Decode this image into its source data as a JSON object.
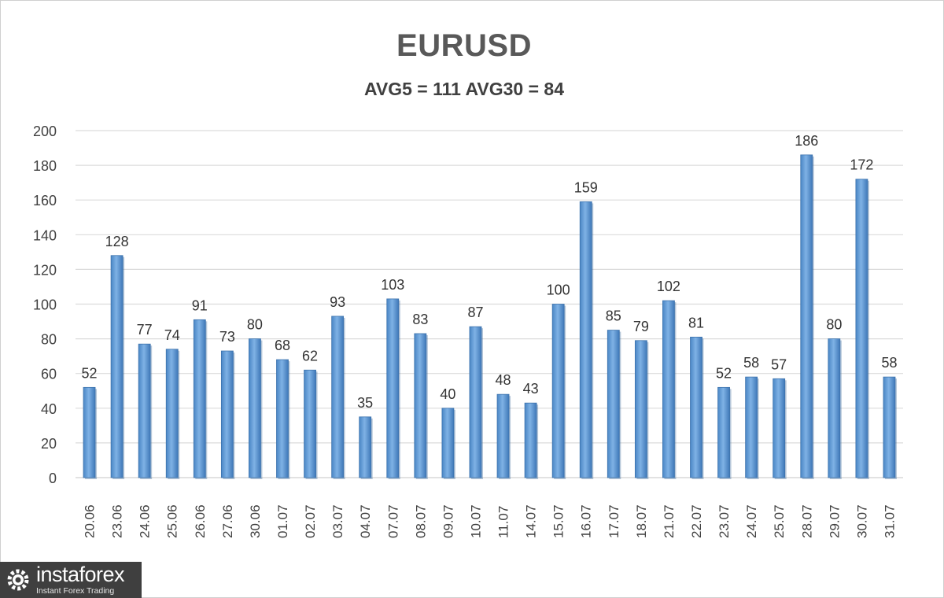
{
  "chart_data": {
    "type": "bar",
    "title": "EURUSD",
    "subtitle": "AVG5 = 111 AVG30 = 84",
    "categories": [
      "20.06",
      "23.06",
      "24.06",
      "25.06",
      "26.06",
      "27.06",
      "30.06",
      "01.07",
      "02.07",
      "03.07",
      "04.07",
      "07.07",
      "08.07",
      "09.07",
      "10.07",
      "11.07",
      "14.07",
      "15.07",
      "16.07",
      "17.07",
      "18.07",
      "21.07",
      "22.07",
      "23.07",
      "24.07",
      "25.07",
      "28.07",
      "29.07",
      "30.07",
      "31.07"
    ],
    "values": [
      52,
      128,
      77,
      74,
      91,
      73,
      80,
      68,
      62,
      93,
      35,
      103,
      83,
      40,
      87,
      48,
      43,
      100,
      159,
      85,
      79,
      102,
      81,
      52,
      58,
      57,
      186,
      80,
      172,
      58
    ],
    "yticks": [
      0,
      20,
      40,
      60,
      80,
      100,
      120,
      140,
      160,
      180,
      200
    ],
    "ylim": [
      0,
      200
    ],
    "grid": true,
    "bar_color": "#5b9bd5"
  },
  "logo": {
    "name": "instaforex",
    "tagline": "Instant Forex Trading"
  }
}
